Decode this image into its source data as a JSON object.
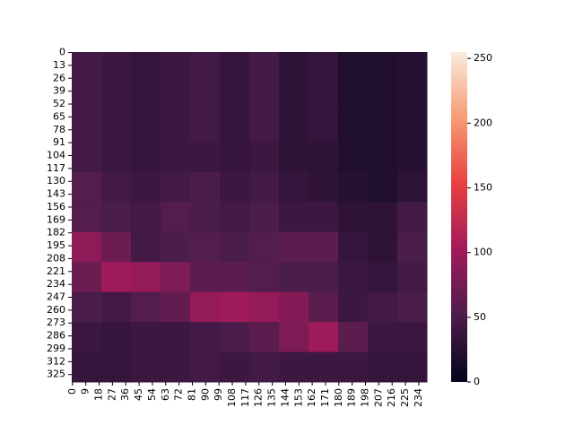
{
  "chart_data": {
    "type": "heatmap",
    "xlim": [
      0,
      240
    ],
    "ylim": [
      0,
      333
    ],
    "xticks": [
      0,
      9,
      18,
      27,
      36,
      45,
      54,
      63,
      72,
      81,
      90,
      99,
      108,
      117,
      126,
      135,
      144,
      153,
      162,
      171,
      180,
      189,
      198,
      207,
      216,
      225,
      234
    ],
    "yticks": [
      0,
      13,
      26,
      39,
      52,
      65,
      78,
      91,
      104,
      117,
      130,
      143,
      156,
      169,
      182,
      195,
      208,
      221,
      234,
      247,
      260,
      273,
      286,
      299,
      312,
      325
    ],
    "z": [
      [
        45,
        40,
        35,
        40,
        45,
        35,
        45,
        30,
        35,
        20,
        20,
        25
      ],
      [
        45,
        40,
        35,
        40,
        45,
        35,
        45,
        30,
        35,
        20,
        20,
        25
      ],
      [
        45,
        40,
        35,
        40,
        45,
        35,
        45,
        30,
        35,
        20,
        20,
        25
      ],
      [
        45,
        40,
        35,
        40,
        40,
        35,
        40,
        30,
        30,
        20,
        20,
        25
      ],
      [
        55,
        45,
        40,
        45,
        50,
        40,
        45,
        35,
        30,
        25,
        20,
        30
      ],
      [
        55,
        50,
        45,
        55,
        50,
        45,
        50,
        40,
        40,
        30,
        30,
        45
      ],
      [
        90,
        70,
        45,
        50,
        55,
        50,
        55,
        60,
        60,
        35,
        30,
        50
      ],
      [
        70,
        100,
        95,
        80,
        60,
        60,
        55,
        50,
        50,
        40,
        35,
        45
      ],
      [
        50,
        45,
        55,
        65,
        95,
        100,
        95,
        85,
        60,
        40,
        45,
        50
      ],
      [
        40,
        35,
        40,
        40,
        45,
        50,
        60,
        80,
        100,
        60,
        40,
        40
      ],
      [
        35,
        35,
        40,
        40,
        45,
        40,
        45,
        40,
        40,
        40,
        35,
        35
      ]
    ],
    "zlim": [
      0,
      255
    ],
    "colorbar_ticks": [
      0,
      50,
      100,
      150,
      200,
      250
    ],
    "colormap": [
      "#03051a",
      "#4c1d4b",
      "#a11a5b",
      "#e83f3f",
      "#f69c73",
      "#faebdd"
    ]
  }
}
